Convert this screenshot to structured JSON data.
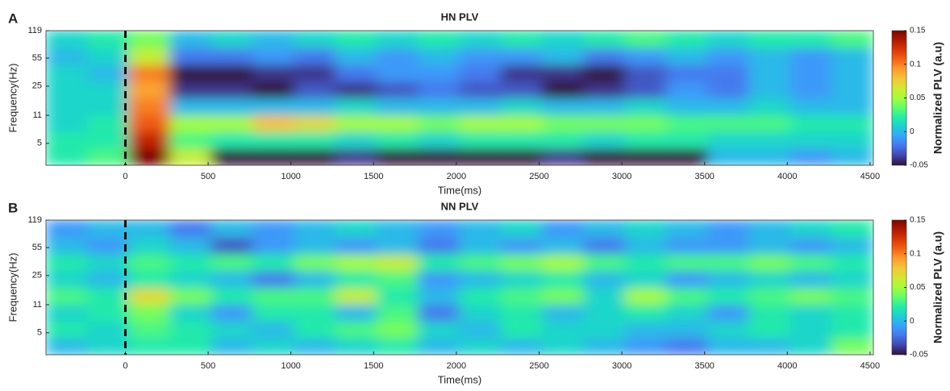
{
  "chart_data": [
    {
      "type": "heatmap",
      "panel_label": "A",
      "title": "HN PLV",
      "xlabel": "Time(ms)",
      "ylabel": "Frequency(Hz)",
      "colorbar_label": "Normalized PLV (a.u)",
      "xlim": [
        -480,
        4520
      ],
      "xticks": [
        0,
        500,
        1000,
        1500,
        2000,
        2500,
        3000,
        3500,
        4000,
        4500
      ],
      "ylim": [
        2.7,
        119
      ],
      "yticks": [
        5,
        11,
        25,
        55,
        119
      ],
      "ylog": true,
      "clim": [
        -0.05,
        0.15
      ],
      "cticks": [
        -0.05,
        0,
        0.05,
        0.1,
        0.15
      ],
      "colormap": [
        "#30123b",
        "#4145ab",
        "#4675ed",
        "#39a2fc",
        "#1bcfd4",
        "#24eca6",
        "#61fc6c",
        "#a4fc3b",
        "#d1e834",
        "#f3c63a",
        "#fe9b2d",
        "#f36315",
        "#d93806",
        "#b11901",
        "#7a0403"
      ],
      "vline": 0,
      "x": [
        -355,
        -105,
        145,
        395,
        645,
        895,
        1145,
        1395,
        1645,
        1895,
        2145,
        2395,
        2645,
        2895,
        3145,
        3395,
        3645,
        3895,
        4145,
        4395
      ],
      "y": [
        3.4,
        5.5,
        8.8,
        14.1,
        22.6,
        36.2,
        58,
        92.8
      ],
      "values": [
        [
          0.02,
          0.03,
          0.15,
          0.06,
          -0.05,
          -0.05,
          -0.05,
          -0.04,
          -0.05,
          -0.05,
          -0.05,
          -0.05,
          -0.04,
          -0.05,
          -0.05,
          -0.05,
          0.0,
          0.0,
          -0.01,
          0.0
        ],
        [
          0.02,
          0.02,
          0.13,
          0.03,
          0.02,
          0.02,
          0.02,
          0.01,
          0.02,
          0.01,
          0.02,
          0.02,
          0.02,
          0.01,
          0.02,
          0.02,
          0.01,
          0.01,
          0.01,
          0.01
        ],
        [
          0.01,
          0.02,
          0.11,
          0.05,
          0.05,
          0.08,
          0.07,
          0.05,
          0.05,
          0.04,
          0.05,
          0.05,
          0.04,
          0.04,
          0.04,
          0.03,
          0.03,
          0.03,
          0.02,
          0.02
        ],
        [
          0.01,
          0.01,
          0.1,
          0.0,
          0.0,
          0.0,
          0.0,
          0.01,
          0.0,
          0.0,
          0.0,
          0.01,
          0.0,
          0.0,
          0.01,
          0.0,
          0.0,
          0.01,
          0.0,
          0.0
        ],
        [
          0.01,
          0.01,
          0.09,
          -0.04,
          -0.04,
          -0.05,
          -0.03,
          -0.04,
          -0.03,
          -0.02,
          -0.03,
          -0.03,
          -0.05,
          -0.04,
          -0.03,
          -0.01,
          -0.02,
          0.0,
          -0.01,
          0.0
        ],
        [
          0.01,
          0.0,
          0.1,
          -0.05,
          -0.05,
          -0.04,
          -0.04,
          -0.02,
          -0.01,
          -0.01,
          -0.02,
          -0.04,
          -0.04,
          -0.05,
          -0.03,
          -0.02,
          -0.02,
          0.0,
          -0.01,
          0.0
        ],
        [
          0.0,
          0.01,
          0.06,
          -0.02,
          -0.02,
          -0.01,
          -0.02,
          0.0,
          -0.01,
          0.0,
          -0.01,
          -0.01,
          0.0,
          -0.02,
          -0.01,
          0.0,
          -0.01,
          0.0,
          -0.01,
          0.0
        ],
        [
          0.01,
          0.02,
          0.04,
          0.0,
          0.01,
          0.0,
          0.01,
          0.02,
          0.01,
          0.02,
          0.01,
          0.02,
          0.01,
          0.02,
          0.03,
          0.02,
          0.01,
          0.02,
          0.02,
          0.03
        ]
      ]
    },
    {
      "type": "heatmap",
      "panel_label": "B",
      "title": "NN PLV",
      "xlabel": "Time(ms)",
      "ylabel": "Frequency(Hz)",
      "colorbar_label": "Normalized PLV (a.u)",
      "xlim": [
        -480,
        4520
      ],
      "xticks": [
        0,
        500,
        1000,
        1500,
        2000,
        2500,
        3000,
        3500,
        4000,
        4500
      ],
      "ylim": [
        2.7,
        119
      ],
      "yticks": [
        5,
        11,
        25,
        55,
        119
      ],
      "ylog": true,
      "clim": [
        -0.05,
        0.15
      ],
      "cticks": [
        -0.05,
        0,
        0.05,
        0.1,
        0.15
      ],
      "colormap": [
        "#30123b",
        "#4145ab",
        "#4675ed",
        "#39a2fc",
        "#1bcfd4",
        "#24eca6",
        "#61fc6c",
        "#a4fc3b",
        "#d1e834",
        "#f3c63a",
        "#fe9b2d",
        "#f36315",
        "#d93806",
        "#b11901",
        "#7a0403"
      ],
      "vline": 0,
      "x": [
        -355,
        -105,
        145,
        395,
        645,
        895,
        1145,
        1395,
        1645,
        1895,
        2145,
        2395,
        2645,
        2895,
        3145,
        3395,
        3645,
        3895,
        4145,
        4395
      ],
      "y": [
        3.4,
        5.5,
        8.8,
        14.1,
        22.6,
        36.2,
        58,
        92.8
      ],
      "values": [
        [
          0.0,
          0.01,
          0.02,
          0.02,
          0.0,
          0.01,
          0.0,
          0.01,
          0.02,
          0.0,
          0.01,
          0.0,
          0.01,
          0.0,
          -0.01,
          -0.02,
          0.0,
          0.0,
          0.01,
          0.04
        ],
        [
          0.02,
          0.01,
          0.03,
          0.02,
          0.01,
          0.0,
          0.02,
          0.03,
          0.04,
          0.01,
          0.0,
          0.02,
          0.01,
          0.01,
          0.0,
          0.0,
          0.01,
          0.02,
          0.01,
          0.02
        ],
        [
          0.01,
          0.02,
          0.04,
          0.01,
          -0.01,
          0.02,
          0.02,
          0.0,
          0.03,
          -0.02,
          0.01,
          0.02,
          0.0,
          0.01,
          0.02,
          0.01,
          -0.01,
          0.02,
          0.01,
          0.02
        ],
        [
          0.03,
          0.02,
          0.07,
          0.04,
          0.02,
          0.03,
          0.03,
          0.06,
          0.02,
          0.0,
          0.02,
          0.03,
          0.04,
          0.01,
          0.05,
          0.03,
          0.02,
          0.03,
          0.04,
          0.03
        ],
        [
          0.01,
          0.0,
          0.02,
          0.01,
          0.0,
          -0.02,
          0.0,
          0.02,
          0.03,
          -0.01,
          0.0,
          0.01,
          0.02,
          0.0,
          0.01,
          -0.01,
          0.0,
          0.01,
          0.0,
          0.01
        ],
        [
          0.02,
          0.01,
          0.03,
          0.02,
          0.03,
          0.02,
          0.04,
          0.05,
          0.06,
          0.02,
          0.03,
          0.04,
          0.05,
          0.03,
          0.02,
          0.03,
          0.03,
          0.04,
          0.03,
          0.02
        ],
        [
          0.0,
          -0.01,
          0.01,
          0.0,
          -0.03,
          -0.01,
          0.0,
          -0.01,
          0.0,
          -0.02,
          0.0,
          -0.01,
          0.0,
          -0.02,
          0.0,
          -0.01,
          -0.01,
          0.0,
          -0.01,
          0.0
        ],
        [
          -0.01,
          0.0,
          0.0,
          -0.02,
          0.0,
          -0.01,
          0.0,
          0.01,
          0.0,
          -0.01,
          0.0,
          0.01,
          -0.01,
          0.0,
          0.01,
          0.0,
          -0.01,
          0.0,
          0.01,
          0.02
        ]
      ]
    }
  ]
}
